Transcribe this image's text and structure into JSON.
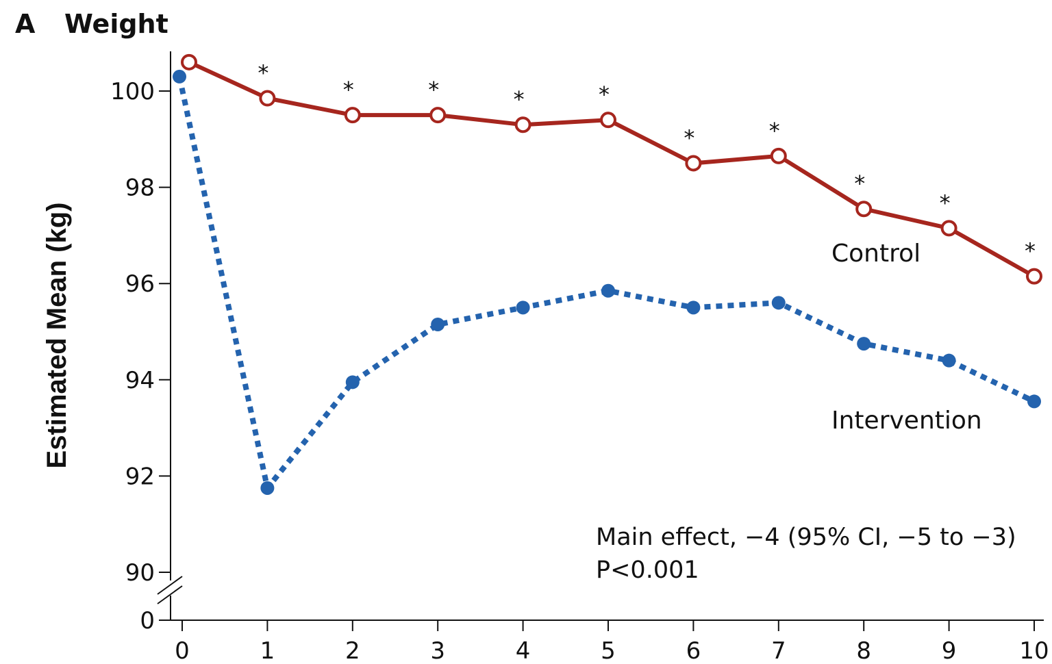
{
  "panel": {
    "letter": "A",
    "title": "Weight"
  },
  "chart_data": {
    "type": "line",
    "title": "Weight",
    "xlabel": "",
    "ylabel": "Estimated Mean (kg)",
    "x": [
      0,
      1,
      2,
      3,
      4,
      5,
      6,
      7,
      8,
      9,
      10
    ],
    "xticks": [
      "0",
      "1",
      "2",
      "3",
      "4",
      "5",
      "6",
      "7",
      "8",
      "9",
      "10"
    ],
    "yticks": [
      "0",
      "90",
      "92",
      "94",
      "96",
      "98",
      "100"
    ],
    "ylim": [
      90,
      100.8
    ],
    "axis_break": true,
    "grid": false,
    "series": [
      {
        "name": "Control",
        "color": "#a6261e",
        "line_style": "solid",
        "marker": "open-circle",
        "values": [
          100.6,
          99.85,
          99.5,
          99.5,
          99.3,
          99.4,
          98.5,
          98.65,
          97.55,
          97.15,
          96.15
        ]
      },
      {
        "name": "Intervention",
        "color": "#2463ae",
        "line_style": "dotted",
        "marker": "filled-circle",
        "values": [
          100.3,
          91.75,
          93.95,
          95.15,
          95.5,
          95.85,
          95.5,
          95.6,
          94.75,
          94.4,
          93.55
        ]
      }
    ],
    "significance_marker": "*",
    "significant_x": [
      1,
      2,
      3,
      4,
      5,
      6,
      7,
      8,
      9,
      10
    ],
    "annotations": [
      "Main effect, −4 (95% CI, −5 to −3)",
      "P<0.001"
    ]
  }
}
